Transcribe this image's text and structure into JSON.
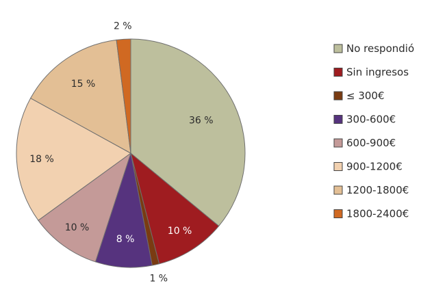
{
  "chart_data": {
    "type": "pie",
    "title": "",
    "start": "12 o'clock",
    "direction": "clockwise",
    "legend_position": "right",
    "unit": " %",
    "slices": [
      {
        "name": "No respondió",
        "value": 36,
        "color": "#bdbf9d"
      },
      {
        "name": "Sin ingresos",
        "value": 10,
        "color": "#9f1c20"
      },
      {
        "name": "≤ 300€",
        "value": 1,
        "color": "#7a3b12"
      },
      {
        "name": "300-600€",
        "value": 8,
        "color": "#56337e"
      },
      {
        "name": "600-900€",
        "value": 10,
        "color": "#c49a98"
      },
      {
        "name": "900-1200€",
        "value": 18,
        "color": "#f2d1b0"
      },
      {
        "name": "1200-1800€",
        "value": 15,
        "color": "#e3bf95"
      },
      {
        "name": "1800-2400€",
        "value": 2,
        "color": "#d06922"
      }
    ]
  }
}
